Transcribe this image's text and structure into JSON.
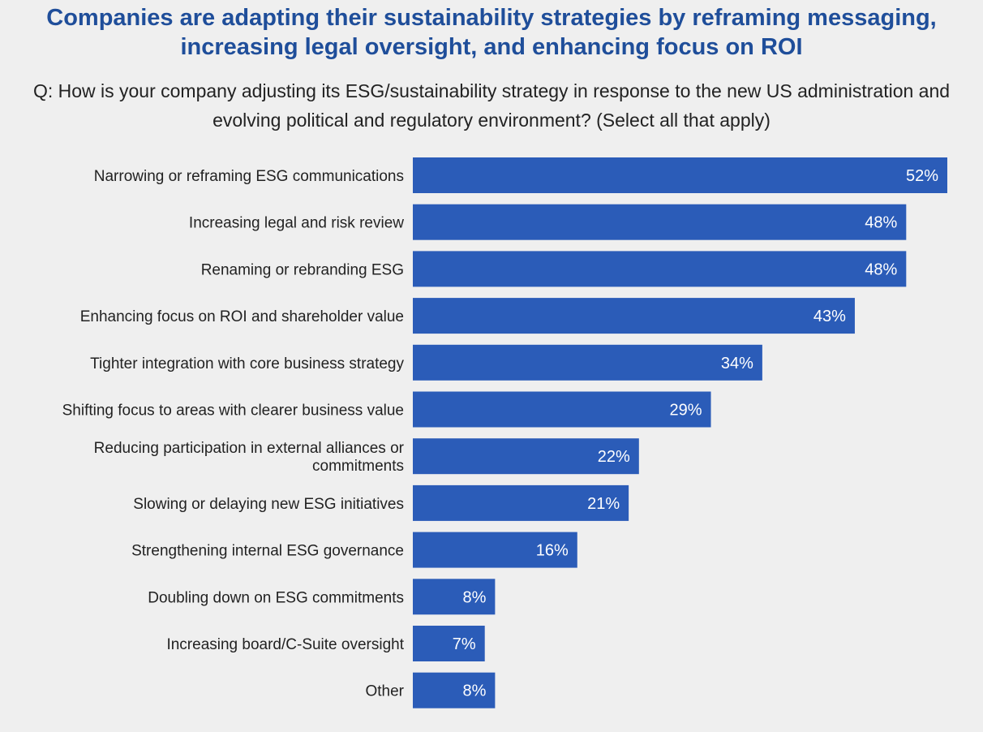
{
  "title": "Companies are adapting their sustainability strategies by reframing messaging, increasing legal oversight, and enhancing focus on ROI",
  "subtitle": "Q: How is your company adjusting its ESG/sustainability strategy in response to the new US administration and evolving political and regulatory environment? (Select all that apply)",
  "colors": {
    "bar": "#2b5cb8",
    "background": "#efefef",
    "title": "#1f4e9a",
    "value_inside": "#ffffff",
    "value_outside": "#222222"
  },
  "chart_data": {
    "type": "bar",
    "orientation": "horizontal",
    "categories": [
      "Narrowing or reframing ESG communications",
      "Increasing legal and risk review",
      "Renaming or rebranding ESG",
      "Enhancing focus on ROI and shareholder value",
      "Tighter integration with core business strategy",
      "Shifting focus to areas with clearer business value",
      "Reducing participation in external alliances or commitments",
      "Slowing or delaying new ESG initiatives",
      "Strengthening internal ESG governance",
      "Doubling down on ESG commitments",
      "Increasing board/C-Suite oversight",
      "Other"
    ],
    "values": [
      52,
      48,
      48,
      43,
      34,
      29,
      22,
      21,
      16,
      8,
      7,
      8
    ],
    "value_labels": [
      "52%",
      "48%",
      "48%",
      "43%",
      "34%",
      "29%",
      "22%",
      "21%",
      "16%",
      "8%",
      "7%",
      "8%"
    ],
    "xlim": [
      0,
      52
    ],
    "grid": false,
    "legend": "none"
  }
}
